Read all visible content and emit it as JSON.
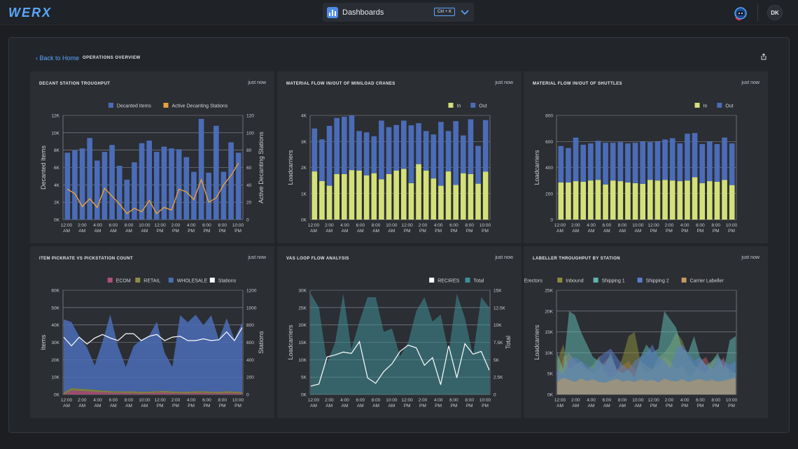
{
  "app": {
    "logo_text": "WERX"
  },
  "header": {
    "selector_label": "Dashboards",
    "shortcut": "Ctrl + K",
    "user_initials": "DK",
    "selector_icon": "bar-chart-icon",
    "chevron_icon": "chevron-down-icon",
    "assistant_icon": "robot-icon"
  },
  "page": {
    "back_label": "Back to Home",
    "title": "OPERATIONS OVERVIEW",
    "share_icon": "share-icon"
  },
  "colors": {
    "accent": "#5aa6ff",
    "blue": "#4b6cb7",
    "orange": "#e8a13c",
    "green": "#d4e078",
    "purple": "#8068b8",
    "teal": "#3f8f97",
    "white": "#ffffff"
  },
  "time_ticks": [
    "12:00 AM",
    "2:00 AM",
    "4:00 AM",
    "6:00 AM",
    "8:00 AM",
    "10:00 AM",
    "12:00 PM",
    "2:00 PM",
    "4:00 PM",
    "6:00 PM",
    "8:00 PM",
    "10:00 PM"
  ],
  "cards": [
    {
      "title": "DECANT STATION TROUGHPUT",
      "timestamp": "just now",
      "chart_data": {
        "type": "bar",
        "ylabel": "Decanted Items",
        "y2label": "Active Decanting Stations",
        "ylim": [
          0,
          12000
        ],
        "y2lim": [
          0,
          120
        ],
        "yticks": [
          "0K",
          "2K",
          "4K",
          "6K",
          "8K",
          "10K",
          "12K"
        ],
        "y2ticks": [
          "0",
          "20",
          "40",
          "60",
          "80",
          "100",
          "120"
        ],
        "series": [
          {
            "name": "Decanted Items",
            "color": "#4b6cb7",
            "values": [
              7700,
              8000,
              8200,
              9400,
              6800,
              7800,
              8600,
              6200,
              4600,
              6600,
              8800,
              9100,
              7800,
              8400,
              8200,
              8100,
              7200,
              5500,
              11600,
              5400,
              10800,
              5500,
              8900,
              7700
            ]
          },
          {
            "name": "Active Decanting Stations",
            "color": "#e8a13c",
            "kind": "line",
            "values": [
              35,
              30,
              15,
              24,
              14,
              36,
              27,
              18,
              7,
              13,
              9,
              22,
              7,
              14,
              11,
              35,
              32,
              23,
              46,
              20,
              25,
              40,
              51,
              65
            ]
          }
        ]
      }
    },
    {
      "title": "MATERIAL FLOW IN/OUT OF MINILOAD CRANES",
      "timestamp": "just now",
      "chart_data": {
        "type": "bar",
        "ylabel": "Loadcarriers",
        "ylim": [
          0,
          4000
        ],
        "yticks": [
          "0K",
          "1K",
          "2K",
          "3K",
          "4K"
        ],
        "stacked": true,
        "series": [
          {
            "name": "In",
            "color": "#d4e078",
            "values": [
              1850,
              1480,
              1300,
              1750,
              1750,
              1900,
              1880,
              1700,
              1780,
              1550,
              1750,
              1880,
              1950,
              1400,
              2130,
              1880,
              1580,
              1300,
              1850,
              1330,
              1780,
              1750,
              1380,
              1840
            ]
          },
          {
            "name": "Out",
            "color": "#4b6cb7",
            "values": [
              1650,
              1600,
              2300,
              2150,
              2200,
              2100,
              1520,
              1650,
              1420,
              2250,
              1800,
              1750,
              1850,
              2220,
              1570,
              1520,
              1690,
              2450,
              1550,
              2450,
              1450,
              2100,
              1450,
              1980
            ]
          }
        ]
      }
    },
    {
      "title": "MATERIAL FLOW IN/OUT OF SHUTTLES",
      "timestamp": "just now",
      "chart_data": {
        "type": "bar",
        "ylabel": "Loadcarriers",
        "ylim": [
          0,
          800
        ],
        "yticks": [
          "0",
          "200",
          "400",
          "600",
          "800"
        ],
        "stacked": true,
        "series": [
          {
            "name": "In",
            "color": "#d4e078",
            "values": [
              285,
              285,
              295,
              290,
              300,
              305,
              270,
              300,
              295,
              285,
              280,
              275,
              305,
              300,
              305,
              300,
              295,
              300,
              325,
              280,
              295,
              290,
              305,
              265
            ]
          },
          {
            "name": "Out",
            "color": "#4b6cb7",
            "values": [
              280,
              265,
              335,
              285,
              285,
              300,
              320,
              290,
              300,
              300,
              310,
              325,
              290,
              300,
              310,
              325,
              290,
              360,
              340,
              300,
              305,
              290,
              325,
              320
            ]
          }
        ]
      }
    },
    {
      "title": "ITEM PICKRATE VS PICKSTATION COUNT",
      "timestamp": "just now",
      "chart_data": {
        "type": "area",
        "ylabel": "Items",
        "y2label": "Stations",
        "ylim": [
          0,
          60000
        ],
        "y2lim": [
          0,
          1200
        ],
        "yticks": [
          "0K",
          "10K",
          "20K",
          "30K",
          "40K",
          "50K",
          "60K"
        ],
        "y2ticks": [
          "0",
          "200",
          "400",
          "600",
          "800",
          "1000",
          "1200"
        ],
        "stacked": true,
        "series": [
          {
            "name": "ECOM",
            "color": "#b0507a",
            "values": [
              0,
              2200,
              2000,
              1800,
              1500,
              1200,
              1000,
              900,
              800,
              700,
              600,
              800,
              900,
              1000,
              800,
              700,
              600,
              800,
              900,
              700,
              600,
              800,
              700,
              600
            ]
          },
          {
            "name": "RETAIL",
            "color": "#8c8c4a",
            "values": [
              1200,
              1500,
              1400,
              1300,
              1200,
              1100,
              1000,
              900,
              1000,
              1100,
              1000,
              900,
              1000,
              1100,
              1000,
              900,
              1000,
              1100,
              1000,
              900,
              1000,
              1100,
              1000,
              900
            ]
          },
          {
            "name": "WHOLESALE",
            "color": "#4b6cb7",
            "values": [
              42000,
              38000,
              30000,
              24000,
              14000,
              28000,
              44000,
              26000,
              14000,
              26000,
              30000,
              32000,
              40000,
              22000,
              14000,
              44000,
              40000,
              44000,
              38000,
              44000,
              30000,
              42000,
              30000,
              40000
            ]
          },
          {
            "name": "Stations",
            "color": "#ffffff",
            "kind": "line",
            "values": [
              660,
              560,
              660,
              580,
              650,
              690,
              650,
              620,
              700,
              700,
              620,
              670,
              690,
              620,
              660,
              670,
              620,
              620,
              640,
              620,
              630,
              720,
              620,
              770
            ]
          }
        ]
      }
    },
    {
      "title": "VAS LOOP FLOW ANALYSIS",
      "timestamp": "just now",
      "chart_data": {
        "type": "area",
        "ylabel": "Loadcarriers",
        "y2label": "Total",
        "ylim": [
          0,
          30000
        ],
        "y2lim": [
          0,
          15000
        ],
        "yticks": [
          "0K",
          "5K",
          "10K",
          "15K",
          "20K",
          "25K",
          "30K"
        ],
        "y2ticks": [
          "0",
          "2.5K",
          "5K",
          "7.5K",
          "10K",
          "12.5K",
          "15K"
        ],
        "series": [
          {
            "name": "Total",
            "color": "#3f8f97",
            "values": [
              29000,
              25000,
              9000,
              15000,
              29000,
              13000,
              21000,
              28000,
              28000,
              18000,
              19000,
              11000,
              15000,
              24000,
              28000,
              21000,
              23000,
              12000,
              29000,
              22000,
              11000,
              28000,
              25000
            ]
          },
          {
            "name": "RECIRES",
            "color": "#ffffff",
            "kind": "line",
            "values": [
              1200,
              1500,
              5400,
              5700,
              6100,
              5900,
              7600,
              2400,
              1600,
              3300,
              4400,
              6200,
              7100,
              6700,
              4200,
              5300,
              1400,
              7000,
              2400,
              7300,
              5800,
              6200,
              3500
            ]
          }
        ]
      }
    },
    {
      "title": "LABELLER THROUGHPUT BY STATION",
      "timestamp": "just now",
      "chart_data": {
        "type": "area",
        "ylabel": "Loadcarriers",
        "ylim": [
          0,
          25000
        ],
        "yticks": [
          "0K",
          "5K",
          "10K",
          "15K",
          "20K",
          "25K"
        ],
        "series": [
          {
            "name": "Carton Erectors",
            "color": "#b55a5a",
            "values": [
              4000,
              9000,
              10000,
              8000,
              7000,
              6000,
              5000,
              6000,
              8000,
              9000,
              6000,
              7000,
              8000,
              6000,
              7000,
              5000,
              6000,
              7000,
              9000,
              8000,
              6000,
              7000,
              4000,
              5000,
              8000,
              9000,
              6000,
              7000,
              9000,
              4000,
              5000
            ]
          },
          {
            "name": "Inbound",
            "color": "#8a8c3a",
            "values": [
              8000,
              12000,
              6000,
              7000,
              8000,
              6000,
              7000,
              9000,
              5000,
              4000,
              5000,
              9000,
              14000,
              15000,
              8000,
              7000,
              6000,
              9000,
              10000,
              12000,
              15000,
              13000,
              9000,
              7000,
              6000,
              5000,
              8000,
              9000,
              7000,
              6000,
              5000
            ]
          },
          {
            "name": "Shipping 1",
            "color": "#5fb6ad",
            "values": [
              10000,
              6000,
              20000,
              19000,
              15000,
              12000,
              9000,
              8000,
              7000,
              10000,
              6000,
              5000,
              6000,
              4000,
              9000,
              12000,
              10000,
              11000,
              20000,
              18000,
              16000,
              11000,
              10000,
              14000,
              9000,
              7000,
              8000,
              10000,
              6000,
              13000,
              14000
            ]
          },
          {
            "name": "Shipping 2",
            "color": "#5b7dc4",
            "values": [
              6000,
              5000,
              8000,
              9000,
              8000,
              7000,
              6000,
              9000,
              10000,
              11000,
              9000,
              7000,
              6000,
              8000,
              9000,
              10000,
              12000,
              9000,
              8000,
              6000,
              11000,
              12000,
              10000,
              8000,
              9000,
              7000,
              6000,
              9000,
              8000,
              7000,
              8000
            ]
          },
          {
            "name": "Carrier Labeller",
            "color": "#c79a5e",
            "values": [
              3000,
              4000,
              3500,
              3000,
              3800,
              3200,
              3600,
              3000,
              2800,
              3300,
              3700,
              3100,
              3400,
              3000,
              3600,
              3200,
              3500,
              2900,
              3800,
              3300,
              3100,
              3600,
              3000,
              3400,
              3700,
              3200,
              3500,
              3100,
              3300,
              3600,
              4000
            ]
          }
        ]
      }
    }
  ]
}
